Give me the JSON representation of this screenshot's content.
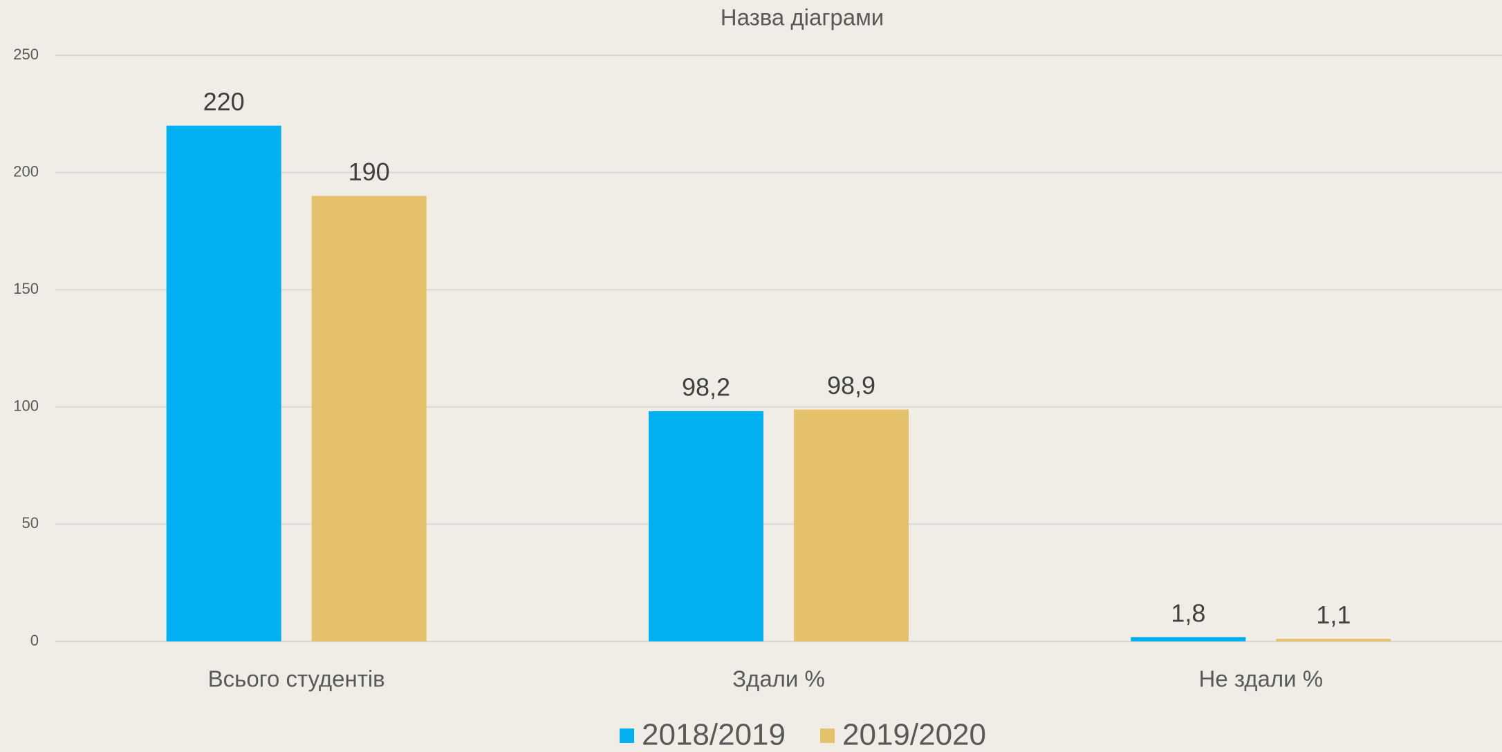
{
  "chart_data": {
    "type": "bar",
    "title": "Назва діаграми",
    "categories": [
      "Всього студентів",
      "Здали %",
      "Не здали %"
    ],
    "series": [
      {
        "name": "2018/2019",
        "color": "#00b0f0",
        "values": [
          220,
          98.2,
          1.8
        ],
        "value_labels": [
          "220",
          "98,2",
          "1,8"
        ]
      },
      {
        "name": "2019/2020",
        "color": "#e5c16b",
        "values": [
          190,
          98.9,
          1.1
        ],
        "value_labels": [
          "190",
          "98,9",
          "1,1"
        ]
      }
    ],
    "ylim": [
      0,
      250
    ],
    "yticks": [
      0,
      50,
      100,
      150,
      200,
      250
    ],
    "grid": true,
    "legend": "bottom"
  }
}
